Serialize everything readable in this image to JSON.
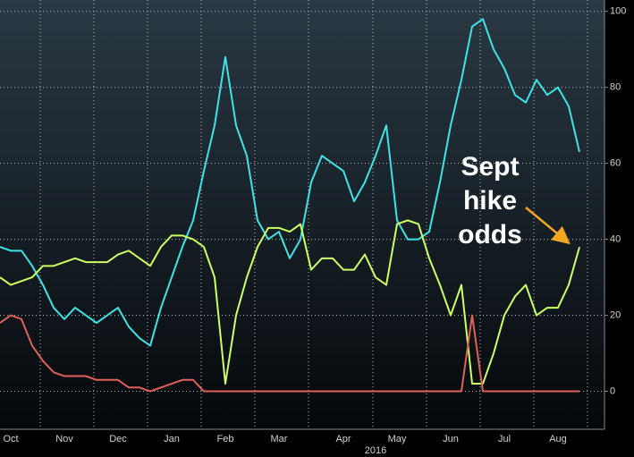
{
  "chart_data": {
    "type": "line",
    "categories": [
      null,
      "Oct",
      null,
      null,
      null,
      null,
      "Nov",
      null,
      null,
      null,
      null,
      "Dec",
      null,
      null,
      null,
      null,
      "Jan",
      null,
      null,
      null,
      null,
      "Feb",
      null,
      null,
      null,
      null,
      "Mar",
      null,
      null,
      null,
      null,
      null,
      "Apr",
      null,
      null,
      null,
      null,
      "May",
      null,
      null,
      null,
      null,
      "Jun",
      null,
      null,
      null,
      null,
      "Jul",
      null,
      null,
      null,
      null,
      "Aug",
      null,
      null
    ],
    "year_label": "2016",
    "series": [
      {
        "name": null,
        "color": "#3fe3e6",
        "values": [
          38,
          37,
          37,
          33,
          28,
          22,
          19,
          22,
          20,
          18,
          20,
          22,
          17,
          14,
          12,
          22,
          30,
          38,
          45,
          58,
          70,
          88,
          70,
          62,
          45,
          40,
          42,
          35,
          40,
          55,
          62,
          60,
          58,
          50,
          55,
          62,
          70,
          45,
          40,
          40,
          42,
          55,
          70,
          82,
          96,
          98,
          90,
          85,
          78,
          76,
          82,
          78,
          80,
          75,
          63
        ]
      },
      {
        "name": null,
        "color": "#ccff66",
        "values": [
          30,
          28,
          29,
          30,
          33,
          33,
          34,
          35,
          34,
          34,
          34,
          36,
          37,
          35,
          33,
          38,
          41,
          41,
          40,
          38,
          30,
          2,
          20,
          30,
          38,
          43,
          43,
          42,
          44,
          32,
          35,
          35,
          32,
          32,
          36,
          30,
          28,
          44,
          45,
          44,
          35,
          28,
          20,
          28,
          2,
          2,
          10,
          20,
          25,
          28,
          20,
          22,
          22,
          28,
          38
        ]
      },
      {
        "name": null,
        "color": "#e0605a",
        "values": [
          18,
          20,
          19,
          12,
          8,
          5,
          4,
          4,
          4,
          3,
          3,
          3,
          1,
          1,
          0,
          1,
          2,
          3,
          3,
          0,
          0,
          0,
          0,
          0,
          0,
          0,
          0,
          0,
          0,
          0,
          0,
          0,
          0,
          0,
          0,
          0,
          0,
          0,
          0,
          0,
          0,
          0,
          0,
          0,
          20,
          0,
          0,
          0,
          0,
          0,
          0,
          0,
          0,
          0,
          0
        ]
      }
    ],
    "ylim": [
      -10,
      103
    ],
    "yticks": [
      0,
      20,
      40,
      60,
      80,
      100
    ],
    "grid": true,
    "annotation": [
      "Sept",
      "hike",
      "odds"
    ]
  }
}
